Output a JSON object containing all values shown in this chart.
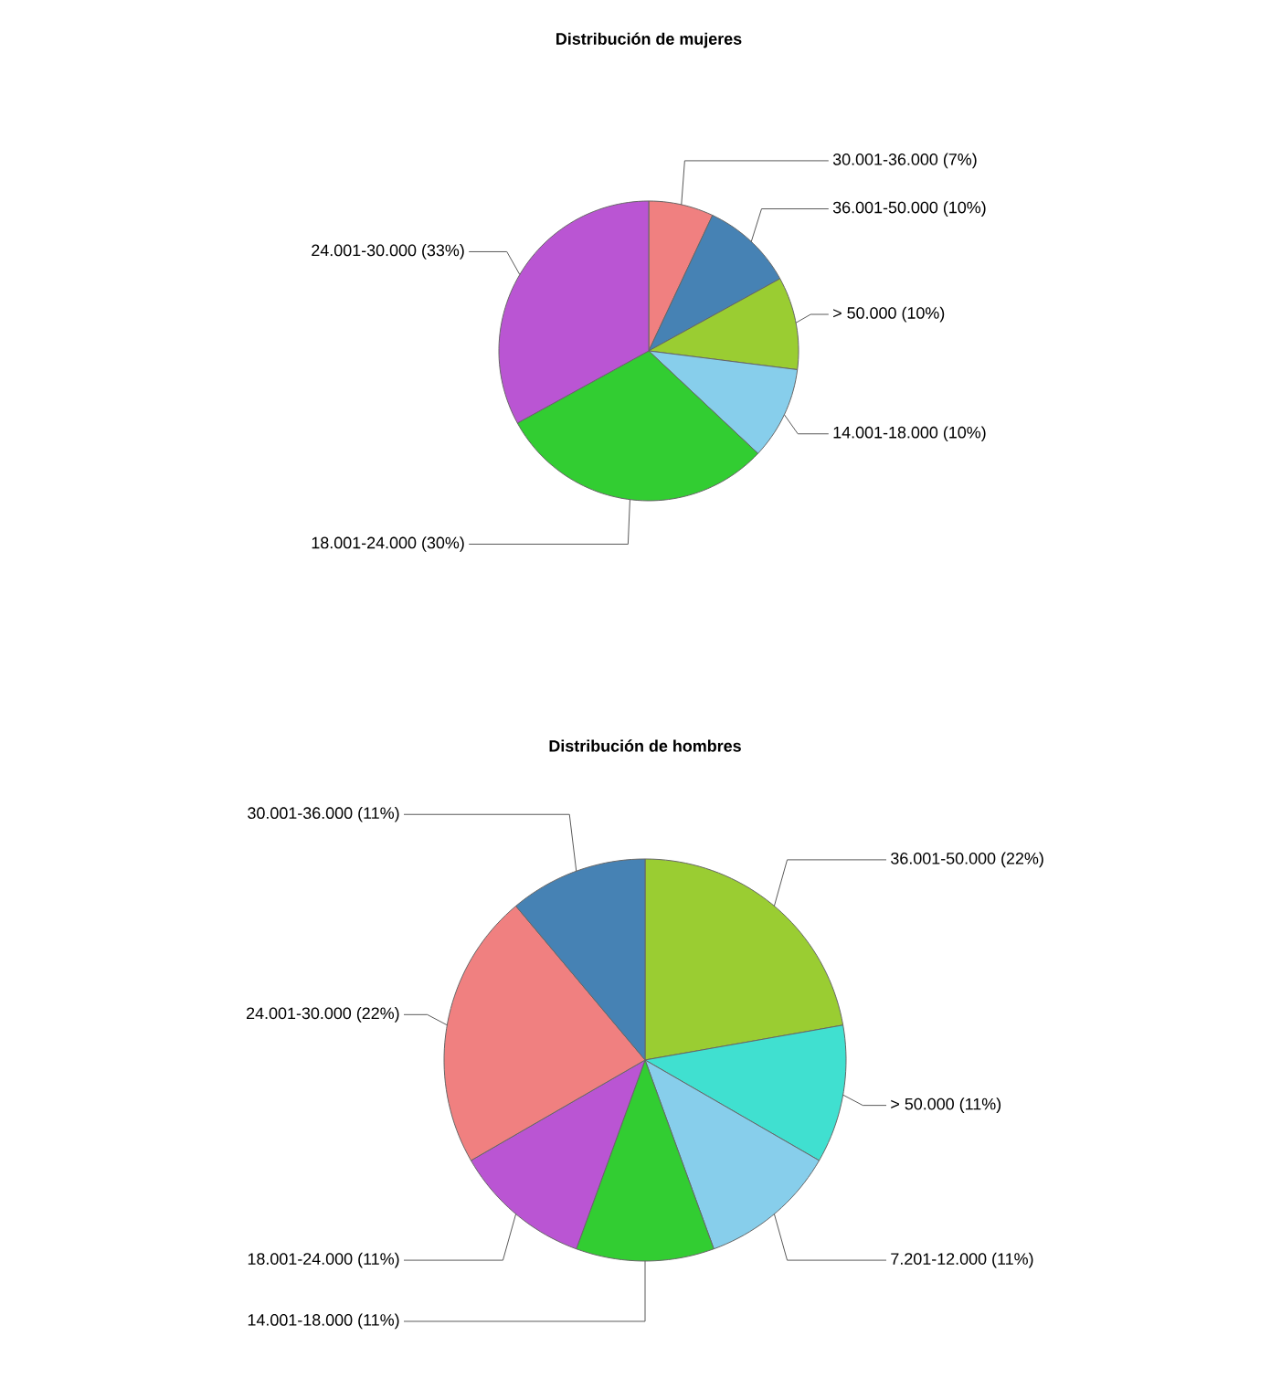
{
  "chart_data": [
    {
      "type": "pie",
      "title": "Distribución de mujeres",
      "categories": [
        "30.001-36.000",
        "36.001-50.000",
        "> 50.000",
        "14.001-18.000",
        "18.001-24.000",
        "24.001-30.000"
      ],
      "values": [
        7,
        10,
        10,
        10,
        30,
        33
      ],
      "value_labels": [
        "(7%)",
        "(10%)",
        "(10%)",
        "(10%)",
        "(30%)",
        "(33%)"
      ],
      "colors": [
        "#f08080",
        "#4682b4",
        "#9acd32",
        "#87ceeb",
        "#32cd32",
        "#ba55d3"
      ]
    },
    {
      "type": "pie",
      "title": "Distribución de hombres",
      "categories": [
        "36.001-50.000",
        "> 50.000",
        "7.201-12.000",
        "14.001-18.000",
        "18.001-24.000",
        "24.001-30.000",
        "30.001-36.000"
      ],
      "values": [
        22,
        11,
        11,
        11,
        11,
        22,
        11
      ],
      "value_labels": [
        "(22%)",
        "(11%)",
        "(11%)",
        "(11%)",
        "(11%)",
        "(22%)",
        "(11%)"
      ],
      "colors": [
        "#9acd32",
        "#40e0d0",
        "#87ceeb",
        "#32cd32",
        "#ba55d3",
        "#f08080",
        "#4682b4"
      ]
    }
  ]
}
